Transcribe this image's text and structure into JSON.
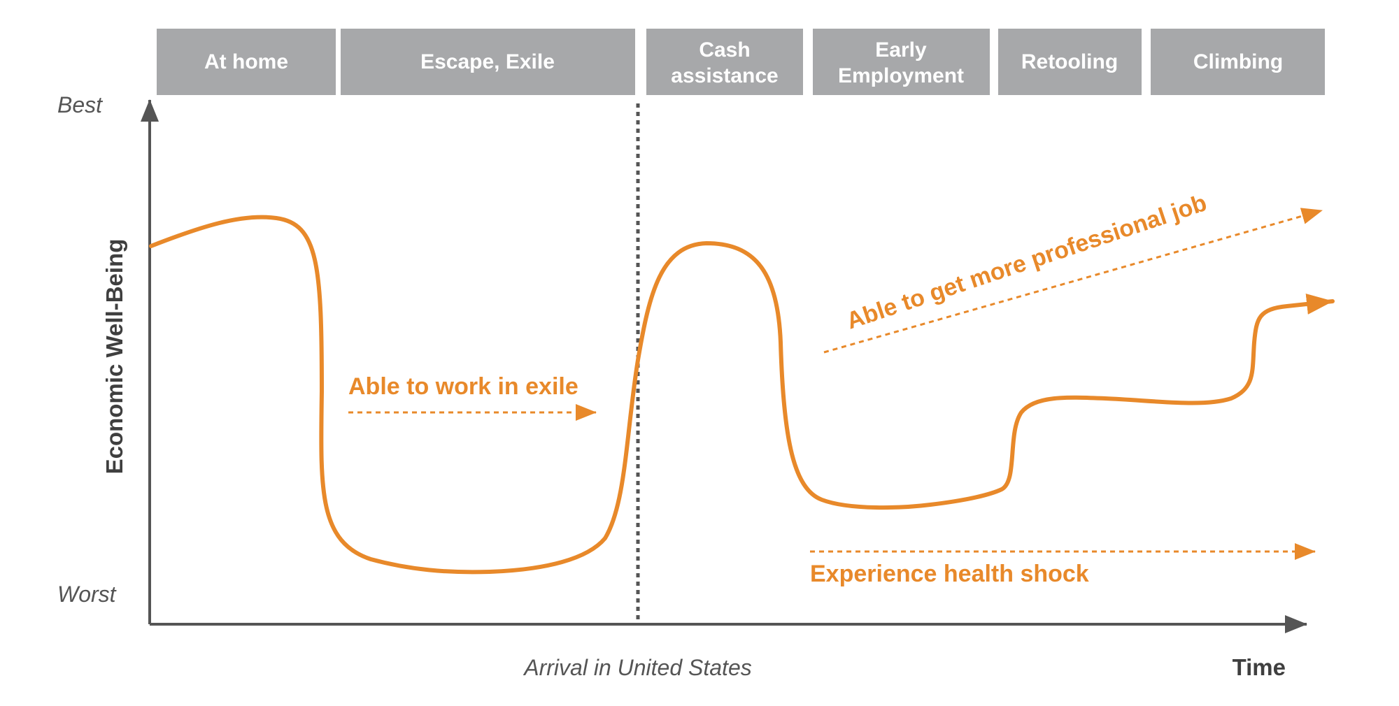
{
  "colors": {
    "accent": "#e8892a",
    "phase_box": "#a7a8aa",
    "axis": "#555555"
  },
  "phases": [
    {
      "lines": [
        "At home"
      ]
    },
    {
      "lines": [
        "Escape, Exile"
      ]
    },
    {
      "lines": [
        "Cash",
        "assistance"
      ]
    },
    {
      "lines": [
        "Early",
        "Employment"
      ]
    },
    {
      "lines": [
        "Retooling"
      ]
    },
    {
      "lines": [
        "Climbing"
      ]
    }
  ],
  "y_axis": {
    "title": "Economic Well-Being",
    "top_label": "Best",
    "bottom_label": "Worst"
  },
  "x_axis": {
    "title": "Time",
    "marker_label": "Arrival in United States"
  },
  "annotations": {
    "work_in_exile": "Able to work in exile",
    "professional_job": "Able to get more professional job",
    "health_shock": "Experience health shock"
  }
}
